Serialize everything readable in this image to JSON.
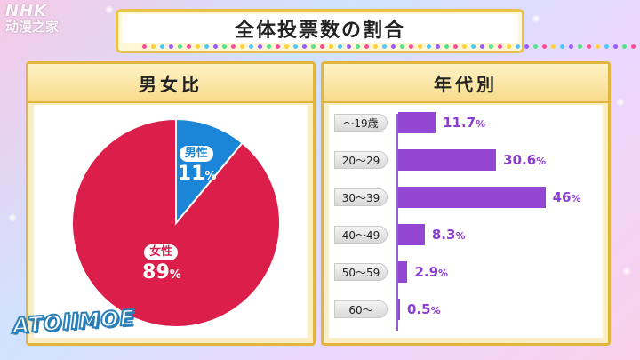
{
  "watermark": {
    "line1": "NHK",
    "line2": "动漫之家"
  },
  "title": "全体投票数の割合",
  "pie_panel": {
    "header": "男女比",
    "slices": [
      {
        "label": "男性",
        "value_text": "11",
        "unit": "%",
        "color": "#1b86d8"
      },
      {
        "label": "女性",
        "value_text": "89",
        "unit": "%",
        "color": "#dc1f4a"
      }
    ]
  },
  "bar_panel": {
    "header": "年代別",
    "items": [
      {
        "label": "～19歳",
        "value_text": "11.7",
        "unit": "%"
      },
      {
        "label": "20～29",
        "value_text": "30.6",
        "unit": "%"
      },
      {
        "label": "30～39",
        "value_text": "46",
        "unit": "%"
      },
      {
        "label": "40～49",
        "value_text": "8.3",
        "unit": "%"
      },
      {
        "label": "50～59",
        "value_text": "2.9",
        "unit": "%"
      },
      {
        "label": "60～",
        "value_text": "0.5",
        "unit": "%"
      }
    ],
    "bar_color": "#9246d2"
  },
  "logo": "ATOllMOE",
  "chart_data": [
    {
      "type": "pie",
      "title": "男女比",
      "categories": [
        "男性",
        "女性"
      ],
      "values": [
        11,
        89
      ],
      "colors": [
        "#1b86d8",
        "#dc1f4a"
      ]
    },
    {
      "type": "bar",
      "orientation": "horizontal",
      "title": "年代別",
      "categories": [
        "～19歳",
        "20～29",
        "30～39",
        "40～49",
        "50～59",
        "60～"
      ],
      "values": [
        11.7,
        30.6,
        46,
        8.3,
        2.9,
        0.5
      ],
      "xlim": [
        0,
        50
      ],
      "grid": false,
      "color": "#9246d2"
    }
  ]
}
